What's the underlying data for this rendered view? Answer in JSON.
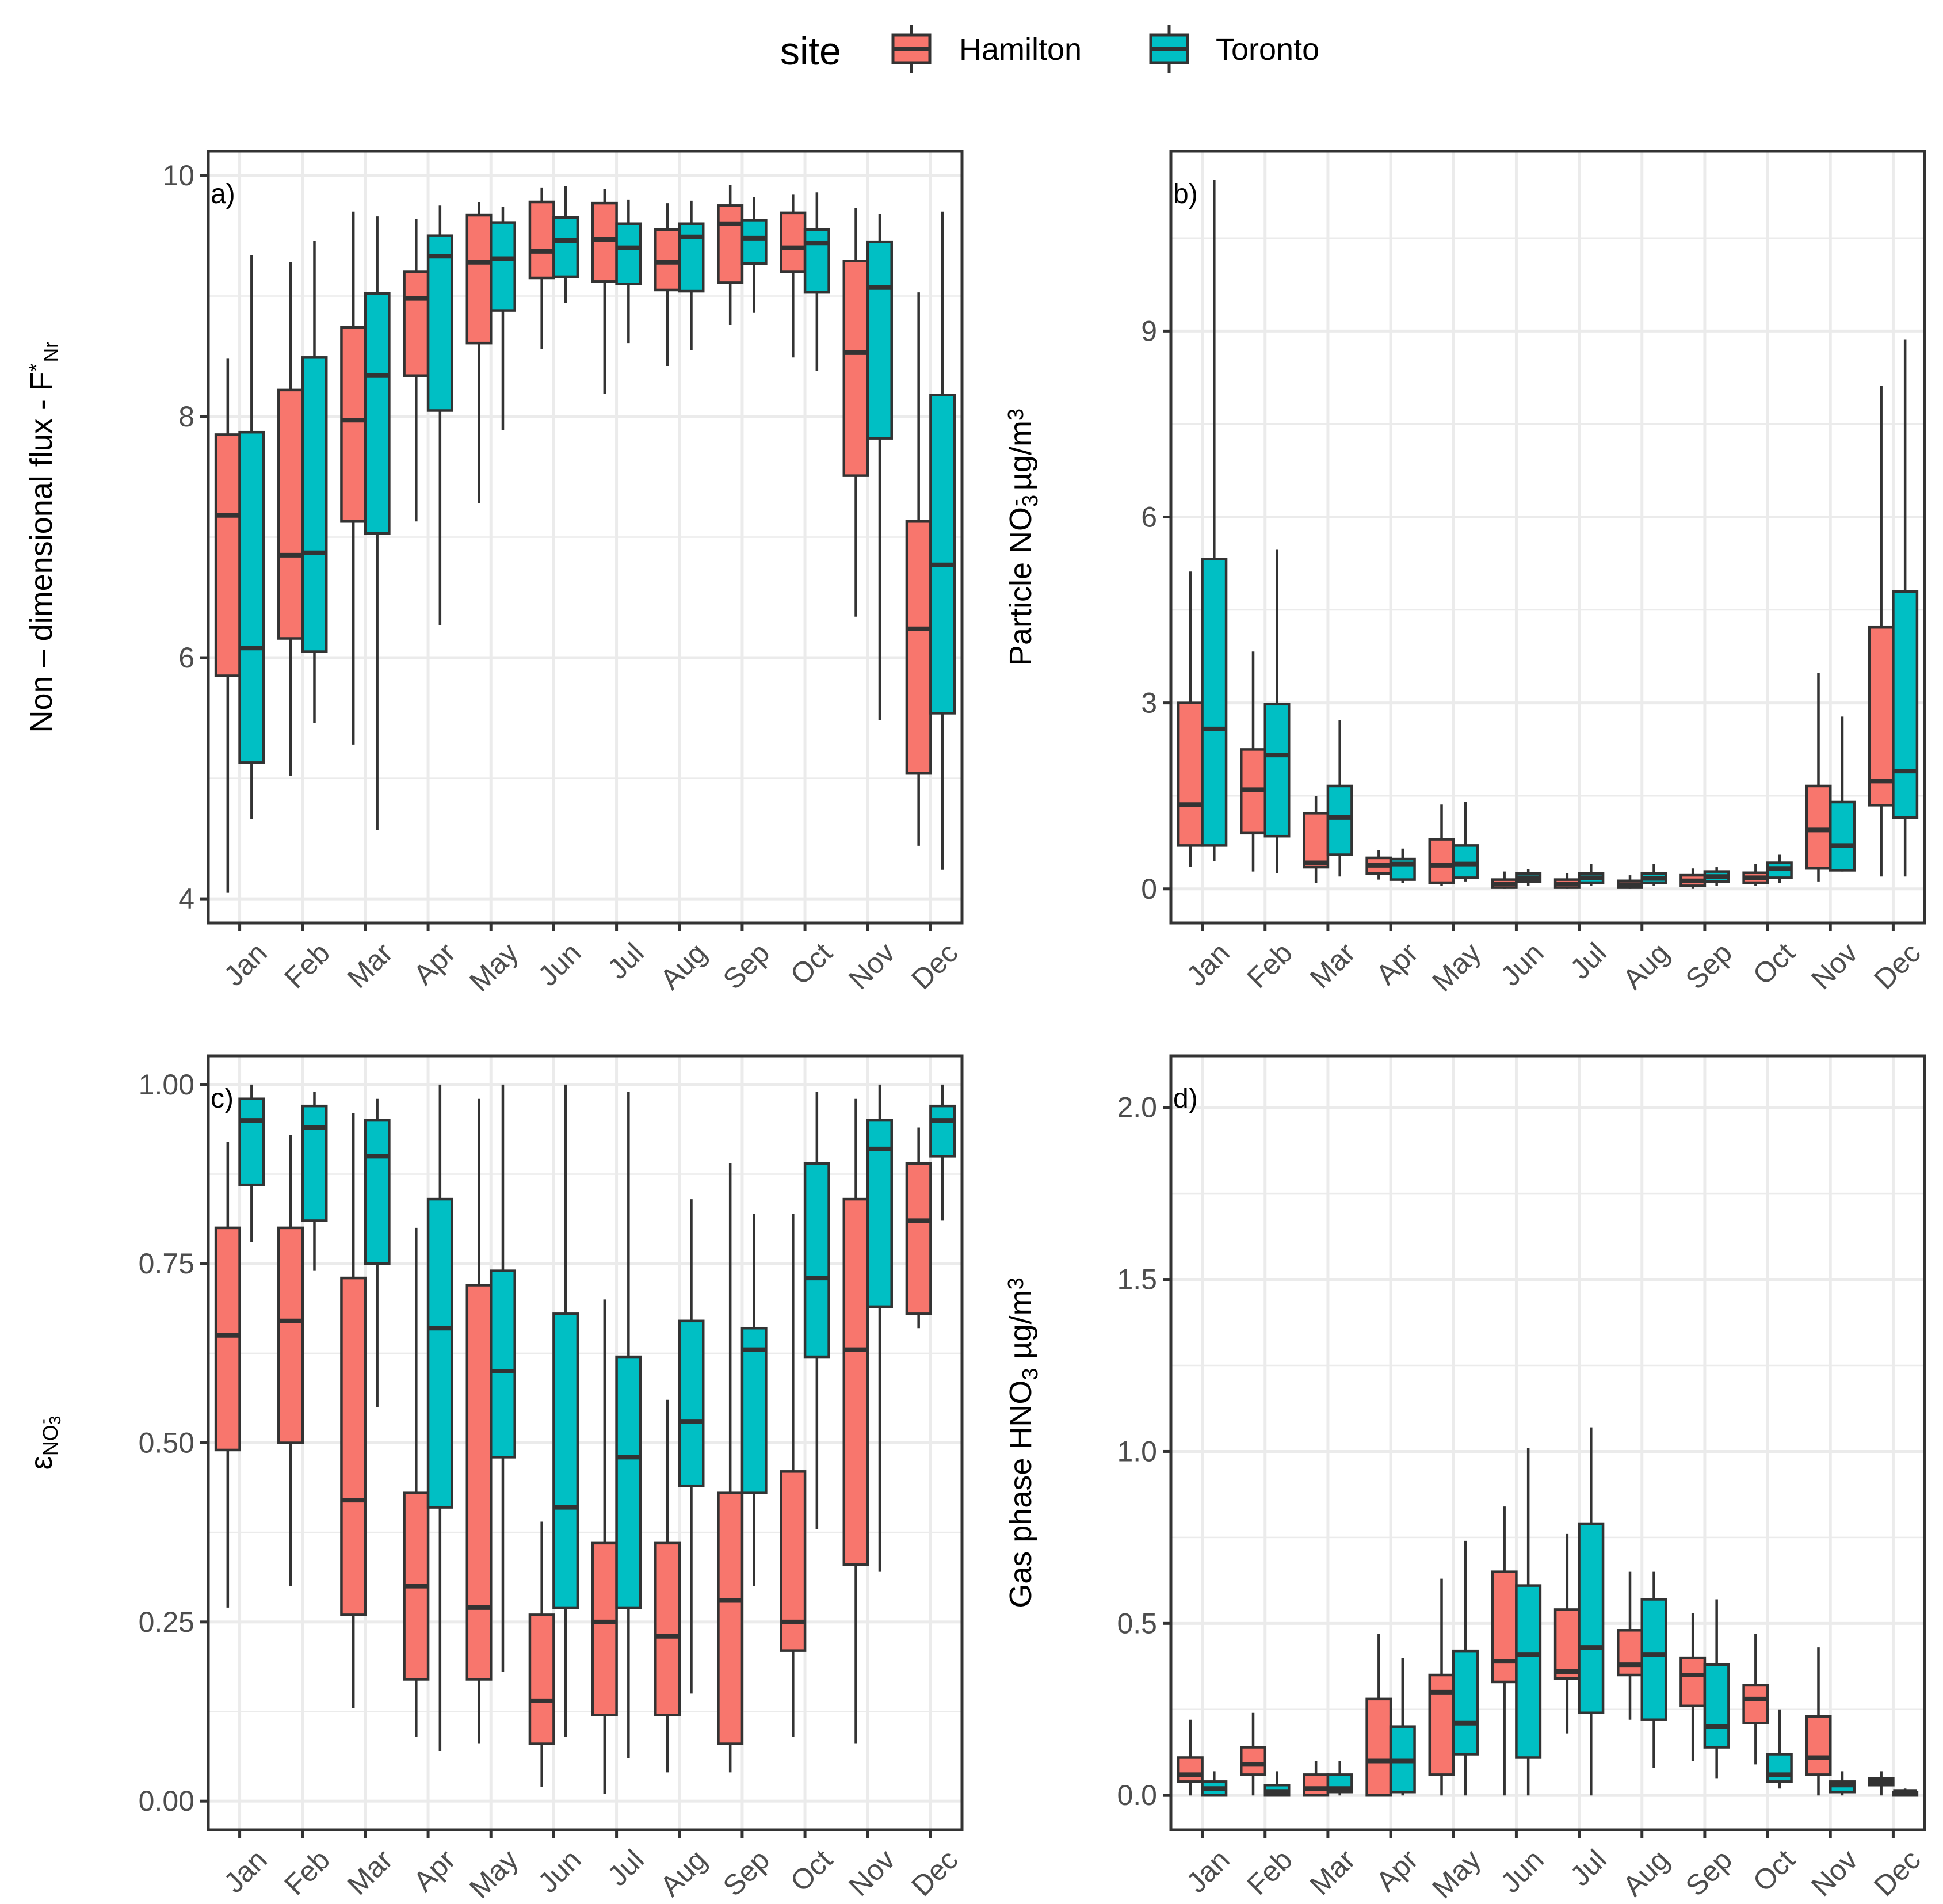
{
  "legend": {
    "title": "site",
    "items": [
      {
        "label": "Hamilton",
        "color": "#F8766D"
      },
      {
        "label": "Toronto",
        "color": "#00BFC4"
      }
    ]
  },
  "chart_data": [
    {
      "type": "boxplot",
      "tag": "a)",
      "ylabel": "Non – dimensional flux - F",
      "ylabel_sup": "*",
      "ylabel_sub": "Nr",
      "ylim": [
        3.8,
        10.2
      ],
      "yticks": [
        4,
        6,
        8,
        10
      ],
      "ytick_labels": [
        "4",
        "6",
        "8",
        "10"
      ],
      "categories": [
        "Jan",
        "Feb",
        "Mar",
        "Apr",
        "May",
        "Jun",
        "Jul",
        "Aug",
        "Sep",
        "Oct",
        "Nov",
        "Dec"
      ],
      "series": [
        {
          "name": "Hamilton",
          "boxes": [
            [
              4.05,
              5.85,
              7.18,
              7.85,
              8.48
            ],
            [
              5.02,
              6.16,
              6.85,
              8.22,
              9.28
            ],
            [
              5.28,
              7.13,
              7.97,
              8.74,
              9.7
            ],
            [
              7.13,
              8.34,
              8.98,
              9.2,
              9.64
            ],
            [
              7.28,
              8.61,
              9.28,
              9.67,
              9.78
            ],
            [
              8.56,
              9.15,
              9.37,
              9.78,
              9.9
            ],
            [
              8.19,
              9.12,
              9.47,
              9.77,
              9.89
            ],
            [
              8.42,
              9.05,
              9.28,
              9.55,
              9.77
            ],
            [
              8.76,
              9.11,
              9.6,
              9.75,
              9.92
            ],
            [
              8.49,
              9.2,
              9.4,
              9.69,
              9.84
            ],
            [
              6.34,
              7.51,
              8.53,
              9.29,
              9.73
            ],
            [
              4.44,
              5.04,
              6.24,
              7.13,
              9.03
            ]
          ]
        },
        {
          "name": "Toronto",
          "boxes": [
            [
              4.66,
              5.13,
              6.08,
              7.87,
              9.34
            ],
            [
              5.46,
              6.05,
              6.87,
              8.49,
              9.46
            ],
            [
              4.57,
              7.03,
              8.34,
              9.02,
              9.66
            ],
            [
              6.27,
              8.05,
              9.33,
              9.5,
              9.75
            ],
            [
              7.89,
              8.88,
              9.31,
              9.61,
              9.74
            ],
            [
              8.94,
              9.16,
              9.46,
              9.65,
              9.91
            ],
            [
              8.61,
              9.1,
              9.4,
              9.6,
              9.8
            ],
            [
              8.55,
              9.04,
              9.49,
              9.6,
              9.79
            ],
            [
              8.86,
              9.27,
              9.48,
              9.63,
              9.82
            ],
            [
              8.38,
              9.03,
              9.44,
              9.55,
              9.86
            ],
            [
              5.48,
              7.82,
              9.07,
              9.45,
              9.68
            ],
            [
              4.24,
              5.54,
              6.77,
              8.18,
              9.7
            ]
          ]
        }
      ]
    },
    {
      "type": "boxplot",
      "tag": "b)",
      "ylabel": "Particle NO",
      "ylabel_sub": "3",
      "ylabel_sup": "-",
      "ylabel_unit": " µg/m",
      "ylabel_unit_sup": "3",
      "ylim": [
        -0.55,
        11.9
      ],
      "yticks": [
        0,
        3,
        6,
        9
      ],
      "ytick_labels": [
        "0",
        "3",
        "6",
        "9"
      ],
      "categories": [
        "Jan",
        "Feb",
        "Mar",
        "Apr",
        "May",
        "Jun",
        "Jul",
        "Aug",
        "Sep",
        "Oct",
        "Nov",
        "Dec"
      ],
      "series": [
        {
          "name": "Hamilton",
          "boxes": [
            [
              0.35,
              0.7,
              1.36,
              3.0,
              5.12
            ],
            [
              0.28,
              0.9,
              1.6,
              2.25,
              3.83
            ],
            [
              0.1,
              0.35,
              0.42,
              1.22,
              1.5
            ],
            [
              0.15,
              0.25,
              0.38,
              0.5,
              0.62
            ],
            [
              0.05,
              0.1,
              0.38,
              0.8,
              1.36
            ],
            [
              0.0,
              0.02,
              0.08,
              0.15,
              0.28
            ],
            [
              0.0,
              0.02,
              0.08,
              0.15,
              0.25
            ],
            [
              0.0,
              0.02,
              0.07,
              0.13,
              0.22
            ],
            [
              0.0,
              0.05,
              0.13,
              0.22,
              0.33
            ],
            [
              0.05,
              0.1,
              0.18,
              0.26,
              0.4
            ],
            [
              0.12,
              0.33,
              0.95,
              1.66,
              3.48
            ],
            [
              0.2,
              1.35,
              1.74,
              4.22,
              8.12
            ]
          ]
        },
        {
          "name": "Toronto",
          "boxes": [
            [
              0.45,
              0.7,
              2.58,
              5.32,
              11.44
            ],
            [
              0.25,
              0.85,
              2.16,
              2.98,
              5.48
            ],
            [
              0.2,
              0.55,
              1.15,
              1.66,
              2.72
            ],
            [
              0.1,
              0.15,
              0.4,
              0.48,
              0.65
            ],
            [
              0.12,
              0.18,
              0.4,
              0.7,
              1.4
            ],
            [
              0.05,
              0.12,
              0.18,
              0.25,
              0.32
            ],
            [
              0.05,
              0.1,
              0.18,
              0.25,
              0.4
            ],
            [
              0.05,
              0.1,
              0.17,
              0.25,
              0.4
            ],
            [
              0.05,
              0.12,
              0.2,
              0.28,
              0.35
            ],
            [
              0.1,
              0.18,
              0.33,
              0.42,
              0.55
            ],
            [
              0.28,
              0.3,
              0.7,
              1.4,
              2.78
            ],
            [
              0.2,
              1.15,
              1.9,
              4.8,
              8.86
            ]
          ]
        }
      ]
    },
    {
      "type": "boxplot",
      "tag": "c)",
      "ylabel": "ε",
      "ylabel_sub": "NO",
      "ylabel_subsub": "3",
      "ylabel_sup": "-",
      "ylim": [
        -0.04,
        1.04
      ],
      "yticks": [
        0,
        0.25,
        0.5,
        0.75,
        1.0
      ],
      "ytick_labels": [
        "0.00",
        "0.25",
        "0.50",
        "0.75",
        "1.00"
      ],
      "categories": [
        "Jan",
        "Feb",
        "Mar",
        "Apr",
        "May",
        "Jun",
        "Jul",
        "Aug",
        "Sep",
        "Oct",
        "Nov",
        "Dec"
      ],
      "series": [
        {
          "name": "Hamilton",
          "boxes": [
            [
              0.27,
              0.49,
              0.65,
              0.8,
              0.92
            ],
            [
              0.3,
              0.5,
              0.67,
              0.8,
              0.93
            ],
            [
              0.13,
              0.26,
              0.42,
              0.73,
              0.96
            ],
            [
              0.09,
              0.17,
              0.3,
              0.43,
              0.8
            ],
            [
              0.08,
              0.17,
              0.27,
              0.72,
              0.98
            ],
            [
              0.02,
              0.08,
              0.14,
              0.26,
              0.39
            ],
            [
              0.01,
              0.12,
              0.25,
              0.36,
              0.7
            ],
            [
              0.04,
              0.12,
              0.23,
              0.36,
              0.56
            ],
            [
              0.04,
              0.08,
              0.28,
              0.43,
              0.89
            ],
            [
              0.09,
              0.21,
              0.25,
              0.46,
              0.82
            ],
            [
              0.08,
              0.33,
              0.63,
              0.84,
              0.98
            ],
            [
              0.66,
              0.68,
              0.81,
              0.89,
              0.94
            ]
          ]
        },
        {
          "name": "Toronto",
          "boxes": [
            [
              0.78,
              0.86,
              0.95,
              0.98,
              1.0
            ],
            [
              0.74,
              0.81,
              0.94,
              0.97,
              0.99
            ],
            [
              0.55,
              0.75,
              0.9,
              0.95,
              0.98
            ],
            [
              0.07,
              0.41,
              0.66,
              0.84,
              1.0
            ],
            [
              0.18,
              0.48,
              0.6,
              0.74,
              1.0
            ],
            [
              0.09,
              0.27,
              0.41,
              0.68,
              1.0
            ],
            [
              0.06,
              0.27,
              0.48,
              0.62,
              0.99
            ],
            [
              0.15,
              0.44,
              0.53,
              0.67,
              0.84
            ],
            [
              0.3,
              0.43,
              0.63,
              0.66,
              0.82
            ],
            [
              0.38,
              0.62,
              0.73,
              0.89,
              0.99
            ],
            [
              0.32,
              0.69,
              0.91,
              0.95,
              1.0
            ],
            [
              0.81,
              0.9,
              0.95,
              0.97,
              1.0
            ]
          ]
        }
      ]
    },
    {
      "type": "boxplot",
      "tag": "d)",
      "ylabel": "Gas phase HNO",
      "ylabel_sub": "3",
      "ylabel_unit": " µg/m",
      "ylabel_unit_sup": "3",
      "ylim": [
        -0.1,
        2.15
      ],
      "yticks": [
        0,
        0.5,
        1.0,
        1.5,
        2.0
      ],
      "ytick_labels": [
        "0.0",
        "0.5",
        "1.0",
        "1.5",
        "2.0"
      ],
      "categories": [
        "Jan",
        "Feb",
        "Mar",
        "Apr",
        "May",
        "Jun",
        "Jul",
        "Aug",
        "Sep",
        "Oct",
        "Nov",
        "Dec"
      ],
      "series": [
        {
          "name": "Hamilton",
          "boxes": [
            [
              0.0,
              0.04,
              0.06,
              0.11,
              0.22
            ],
            [
              0.0,
              0.06,
              0.09,
              0.14,
              0.24
            ],
            [
              0.0,
              0.0,
              0.02,
              0.06,
              0.1
            ],
            [
              0.0,
              0.0,
              0.1,
              0.28,
              0.47
            ],
            [
              0.0,
              0.06,
              0.3,
              0.35,
              0.63
            ],
            [
              0.0,
              0.33,
              0.39,
              0.65,
              0.84
            ],
            [
              0.18,
              0.34,
              0.36,
              0.54,
              0.76
            ],
            [
              0.22,
              0.35,
              0.38,
              0.48,
              0.65
            ],
            [
              0.1,
              0.26,
              0.35,
              0.4,
              0.53
            ],
            [
              0.09,
              0.21,
              0.28,
              0.32,
              0.47
            ],
            [
              0.0,
              0.06,
              0.11,
              0.23,
              0.43
            ],
            [
              0.0,
              0.03,
              0.04,
              0.05,
              0.07
            ]
          ]
        },
        {
          "name": "Toronto",
          "boxes": [
            [
              0.0,
              0.0,
              0.02,
              0.04,
              0.07
            ],
            [
              0.0,
              0.0,
              0.01,
              0.03,
              0.07
            ],
            [
              0.0,
              0.01,
              0.02,
              0.06,
              0.1
            ],
            [
              0.0,
              0.01,
              0.1,
              0.2,
              0.4
            ],
            [
              0.0,
              0.12,
              0.21,
              0.42,
              0.74
            ],
            [
              0.0,
              0.11,
              0.41,
              0.61,
              1.01
            ],
            [
              0.0,
              0.24,
              0.43,
              0.79,
              1.07
            ],
            [
              0.08,
              0.22,
              0.41,
              0.57,
              0.65
            ],
            [
              0.05,
              0.14,
              0.2,
              0.38,
              0.57
            ],
            [
              0.02,
              0.04,
              0.06,
              0.12,
              0.25
            ],
            [
              0.0,
              0.01,
              0.03,
              0.04,
              0.07
            ],
            [
              0.0,
              0.0,
              0.01,
              0.01,
              0.02
            ]
          ]
        }
      ]
    }
  ]
}
